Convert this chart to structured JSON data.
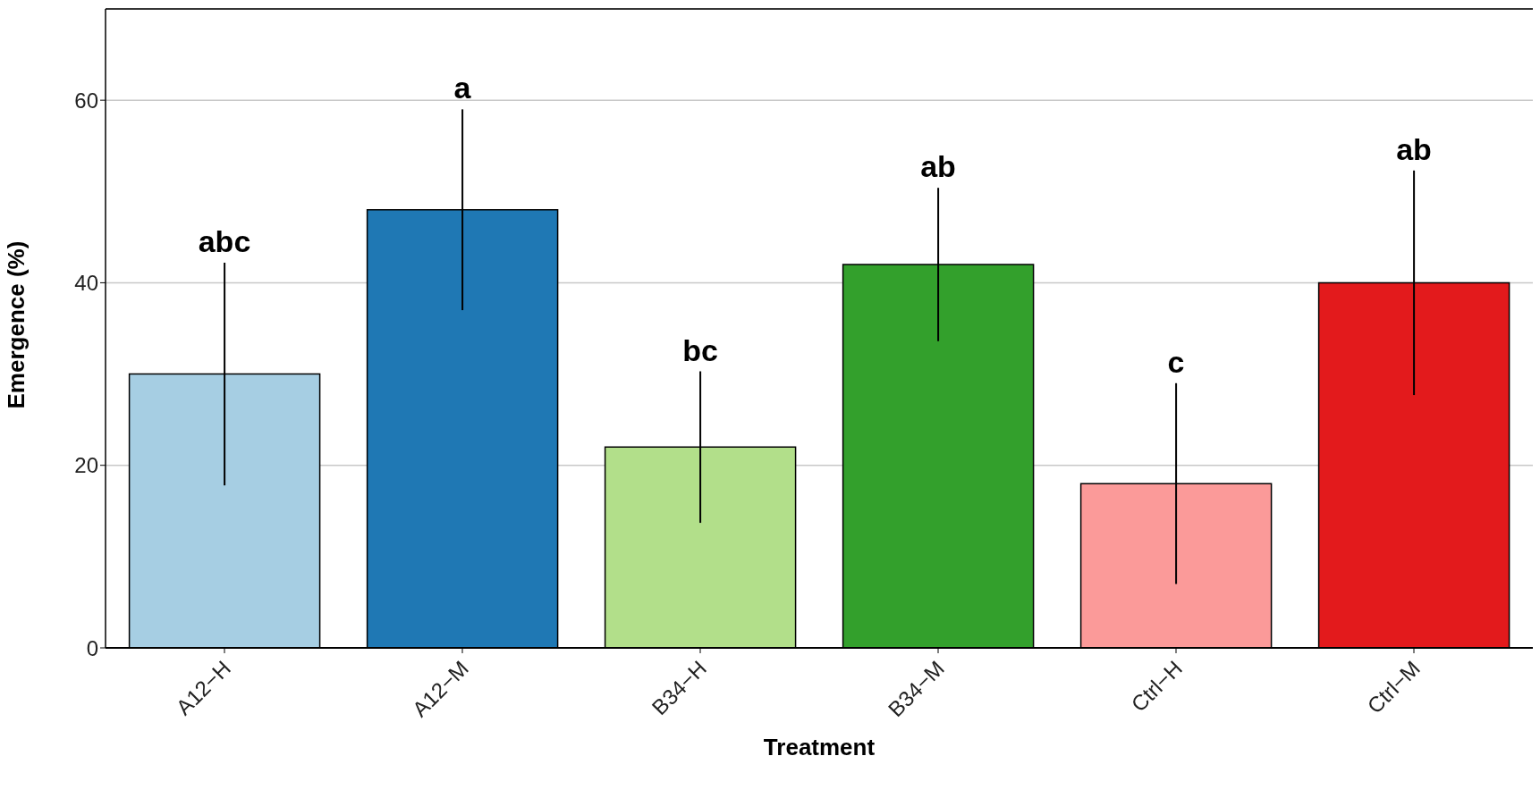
{
  "chart_data": {
    "type": "bar",
    "xlabel": "Treatment",
    "ylabel": "Emergence (%)",
    "categories": [
      "A12−H",
      "A12−M",
      "B34−H",
      "B34−M",
      "Ctrl−H",
      "Ctrl−M"
    ],
    "values": [
      30,
      48,
      22,
      42,
      18,
      40
    ],
    "colors": [
      "#a6cee3",
      "#1f78b4",
      "#b2df8a",
      "#33a02c",
      "#fb9a99",
      "#e31a1c"
    ],
    "errors": [
      12.2,
      11,
      8.3,
      8.4,
      11,
      12.3
    ],
    "ylim": [
      0,
      70
    ],
    "yticks": [
      0,
      20,
      40,
      60
    ],
    "grid": "y",
    "legend": false,
    "annotations": [
      {
        "text": "abc",
        "x": "A12−H",
        "y": 42.2
      },
      {
        "text": "a",
        "x": "A12−M",
        "y": 59
      },
      {
        "text": "bc",
        "x": "B34−H",
        "y": 30.3
      },
      {
        "text": "ab",
        "x": "B34−M",
        "y": 50.4
      },
      {
        "text": "c",
        "x": "Ctrl−H",
        "y": 29
      },
      {
        "text": "ab",
        "x": "Ctrl−M",
        "y": 52.3
      }
    ]
  }
}
